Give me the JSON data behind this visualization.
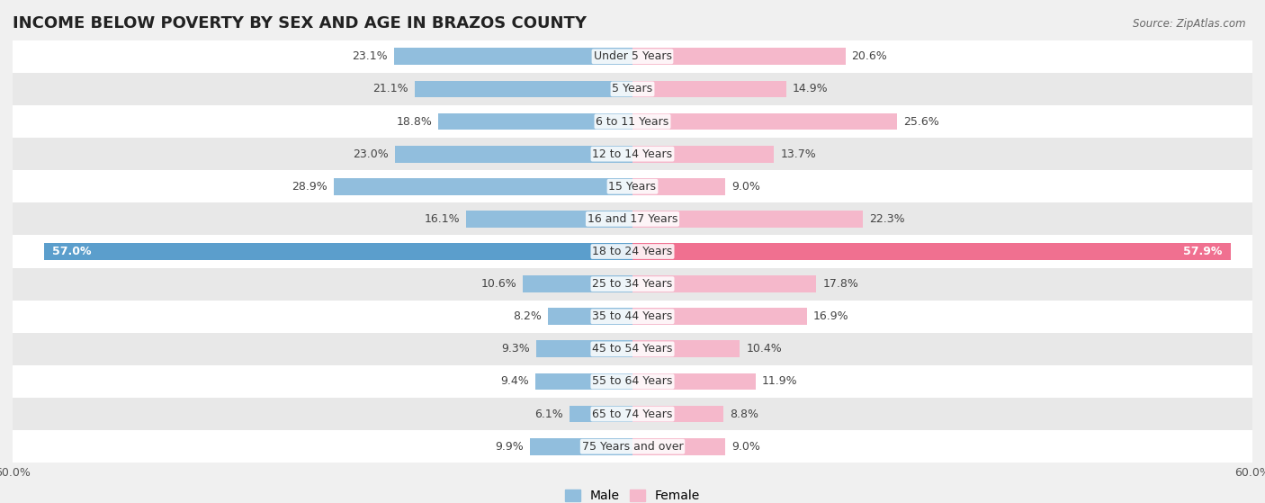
{
  "title": "INCOME BELOW POVERTY BY SEX AND AGE IN BRAZOS COUNTY",
  "source": "Source: ZipAtlas.com",
  "categories": [
    "Under 5 Years",
    "5 Years",
    "6 to 11 Years",
    "12 to 14 Years",
    "15 Years",
    "16 and 17 Years",
    "18 to 24 Years",
    "25 to 34 Years",
    "35 to 44 Years",
    "45 to 54 Years",
    "55 to 64 Years",
    "65 to 74 Years",
    "75 Years and over"
  ],
  "male_values": [
    23.1,
    21.1,
    18.8,
    23.0,
    28.9,
    16.1,
    57.0,
    10.6,
    8.2,
    9.3,
    9.4,
    6.1,
    9.9
  ],
  "female_values": [
    20.6,
    14.9,
    25.6,
    13.7,
    9.0,
    22.3,
    57.9,
    17.8,
    16.9,
    10.4,
    11.9,
    8.8,
    9.0
  ],
  "male_color": "#91bedd",
  "female_color": "#f5b8cb",
  "male_highlight_color": "#5b9ecc",
  "female_highlight_color": "#f07090",
  "background_color": "#f0f0f0",
  "row_color_light": "#ffffff",
  "row_color_dark": "#e8e8e8",
  "axis_limit": 60.0,
  "legend_male": "Male",
  "legend_female": "Female",
  "title_fontsize": 13,
  "label_fontsize": 9,
  "tick_fontsize": 9,
  "source_fontsize": 8.5
}
